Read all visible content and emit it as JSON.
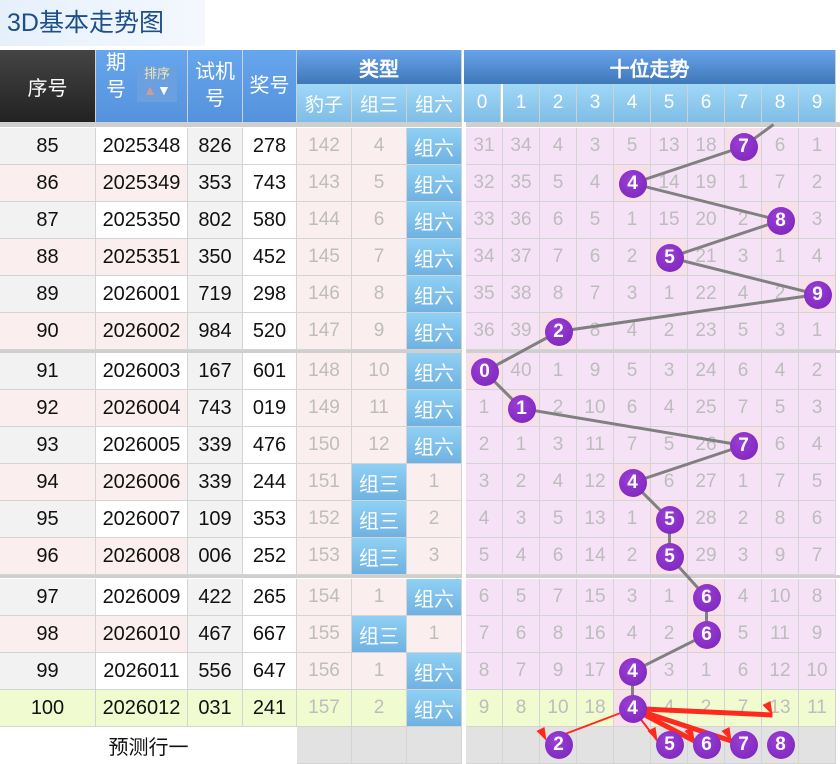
{
  "title": "3D基本走势图",
  "header": {
    "seq": "序号",
    "issue_a": "期",
    "issue_b": "号",
    "sort": "排序",
    "test_a": "试机",
    "test_b": "号",
    "prize": "奖号",
    "type": "类型",
    "leopard": "豹子",
    "group3": "组三",
    "group6": "组六",
    "trend": "十位走势",
    "digits": [
      "0",
      "1",
      "2",
      "3",
      "4",
      "5",
      "6",
      "7",
      "8",
      "9"
    ]
  },
  "colors": {
    "ball": "#7e27bb",
    "header_blue": "#5b9be8",
    "trend_bg": "#f6e2f6",
    "last_row_bg": "#f0fbcf",
    "arrow": "#ff2a1e"
  },
  "rows": [
    {
      "seq": "85",
      "issue": "2025348",
      "test": "826",
      "prize": "278",
      "leopard": "142",
      "g3": "4",
      "g6": "组六",
      "tens": 7,
      "miss": [
        "31",
        "34",
        "4",
        "3",
        "5",
        "13",
        "18",
        "7",
        "6",
        "1"
      ]
    },
    {
      "seq": "86",
      "issue": "2025349",
      "test": "353",
      "prize": "743",
      "leopard": "143",
      "g3": "5",
      "g6": "组六",
      "tens": 4,
      "miss": [
        "32",
        "35",
        "5",
        "4",
        "4",
        "14",
        "19",
        "1",
        "7",
        "2"
      ]
    },
    {
      "seq": "87",
      "issue": "2025350",
      "test": "802",
      "prize": "580",
      "leopard": "144",
      "g3": "6",
      "g6": "组六",
      "tens": 8,
      "miss": [
        "33",
        "36",
        "6",
        "5",
        "1",
        "15",
        "20",
        "2",
        "8",
        "3"
      ]
    },
    {
      "seq": "88",
      "issue": "2025351",
      "test": "350",
      "prize": "452",
      "leopard": "145",
      "g3": "7",
      "g6": "组六",
      "tens": 5,
      "miss": [
        "34",
        "37",
        "7",
        "6",
        "2",
        "5",
        "21",
        "3",
        "1",
        "4"
      ]
    },
    {
      "seq": "89",
      "issue": "2026001",
      "test": "719",
      "prize": "298",
      "leopard": "146",
      "g3": "8",
      "g6": "组六",
      "tens": 9,
      "miss": [
        "35",
        "38",
        "8",
        "7",
        "3",
        "1",
        "22",
        "4",
        "2",
        "9"
      ]
    },
    {
      "seq": "90",
      "issue": "2026002",
      "test": "984",
      "prize": "520",
      "leopard": "147",
      "g3": "9",
      "g6": "组六",
      "tens": 2,
      "miss": [
        "36",
        "39",
        "2",
        "8",
        "4",
        "2",
        "23",
        "5",
        "3",
        "1"
      ]
    },
    {
      "seq": "91",
      "issue": "2026003",
      "test": "167",
      "prize": "601",
      "leopard": "148",
      "g3": "10",
      "g6": "组六",
      "tens": 0,
      "miss": [
        "0",
        "40",
        "1",
        "9",
        "5",
        "3",
        "24",
        "6",
        "4",
        "2"
      ]
    },
    {
      "seq": "92",
      "issue": "2026004",
      "test": "743",
      "prize": "019",
      "leopard": "149",
      "g3": "11",
      "g6": "组六",
      "tens": 1,
      "miss": [
        "1",
        "1",
        "2",
        "10",
        "6",
        "4",
        "25",
        "7",
        "5",
        "3"
      ]
    },
    {
      "seq": "93",
      "issue": "2026005",
      "test": "339",
      "prize": "476",
      "leopard": "150",
      "g3": "12",
      "g6": "组六",
      "tens": 7,
      "miss": [
        "2",
        "1",
        "3",
        "11",
        "7",
        "5",
        "26",
        "7",
        "6",
        "4"
      ]
    },
    {
      "seq": "94",
      "issue": "2026006",
      "test": "339",
      "prize": "244",
      "leopard": "151",
      "g3": "组三",
      "g6": "1",
      "tens": 4,
      "miss": [
        "3",
        "2",
        "4",
        "12",
        "4",
        "6",
        "27",
        "1",
        "7",
        "5"
      ]
    },
    {
      "seq": "95",
      "issue": "2026007",
      "test": "109",
      "prize": "353",
      "leopard": "152",
      "g3": "组三",
      "g6": "2",
      "tens": 5,
      "miss": [
        "4",
        "3",
        "5",
        "13",
        "1",
        "5",
        "28",
        "2",
        "8",
        "6"
      ]
    },
    {
      "seq": "96",
      "issue": "2026008",
      "test": "006",
      "prize": "252",
      "leopard": "153",
      "g3": "组三",
      "g6": "3",
      "tens": 5,
      "miss": [
        "5",
        "4",
        "6",
        "14",
        "2",
        "5",
        "29",
        "3",
        "9",
        "7"
      ]
    },
    {
      "seq": "97",
      "issue": "2026009",
      "test": "422",
      "prize": "265",
      "leopard": "154",
      "g3": "1",
      "g6": "组六",
      "tens": 6,
      "miss": [
        "6",
        "5",
        "7",
        "15",
        "3",
        "1",
        "6",
        "4",
        "10",
        "8"
      ]
    },
    {
      "seq": "98",
      "issue": "2026010",
      "test": "467",
      "prize": "667",
      "leopard": "155",
      "g3": "组三",
      "g6": "1",
      "tens": 6,
      "miss": [
        "7",
        "6",
        "8",
        "16",
        "4",
        "2",
        "6",
        "5",
        "11",
        "9"
      ]
    },
    {
      "seq": "99",
      "issue": "2026011",
      "test": "556",
      "prize": "647",
      "leopard": "156",
      "g3": "1",
      "g6": "组六",
      "tens": 4,
      "miss": [
        "8",
        "7",
        "9",
        "17",
        "4",
        "3",
        "1",
        "6",
        "12",
        "10"
      ]
    },
    {
      "seq": "100",
      "issue": "2026012",
      "test": "031",
      "prize": "241",
      "leopard": "157",
      "g3": "2",
      "g6": "组六",
      "tens": 4,
      "miss": [
        "9",
        "8",
        "10",
        "18",
        "4",
        "4",
        "2",
        "7",
        "13",
        "11"
      ]
    }
  ],
  "prediction": {
    "label": "预测行一",
    "balls": [
      "2",
      "5",
      "6",
      "7",
      "8"
    ]
  }
}
